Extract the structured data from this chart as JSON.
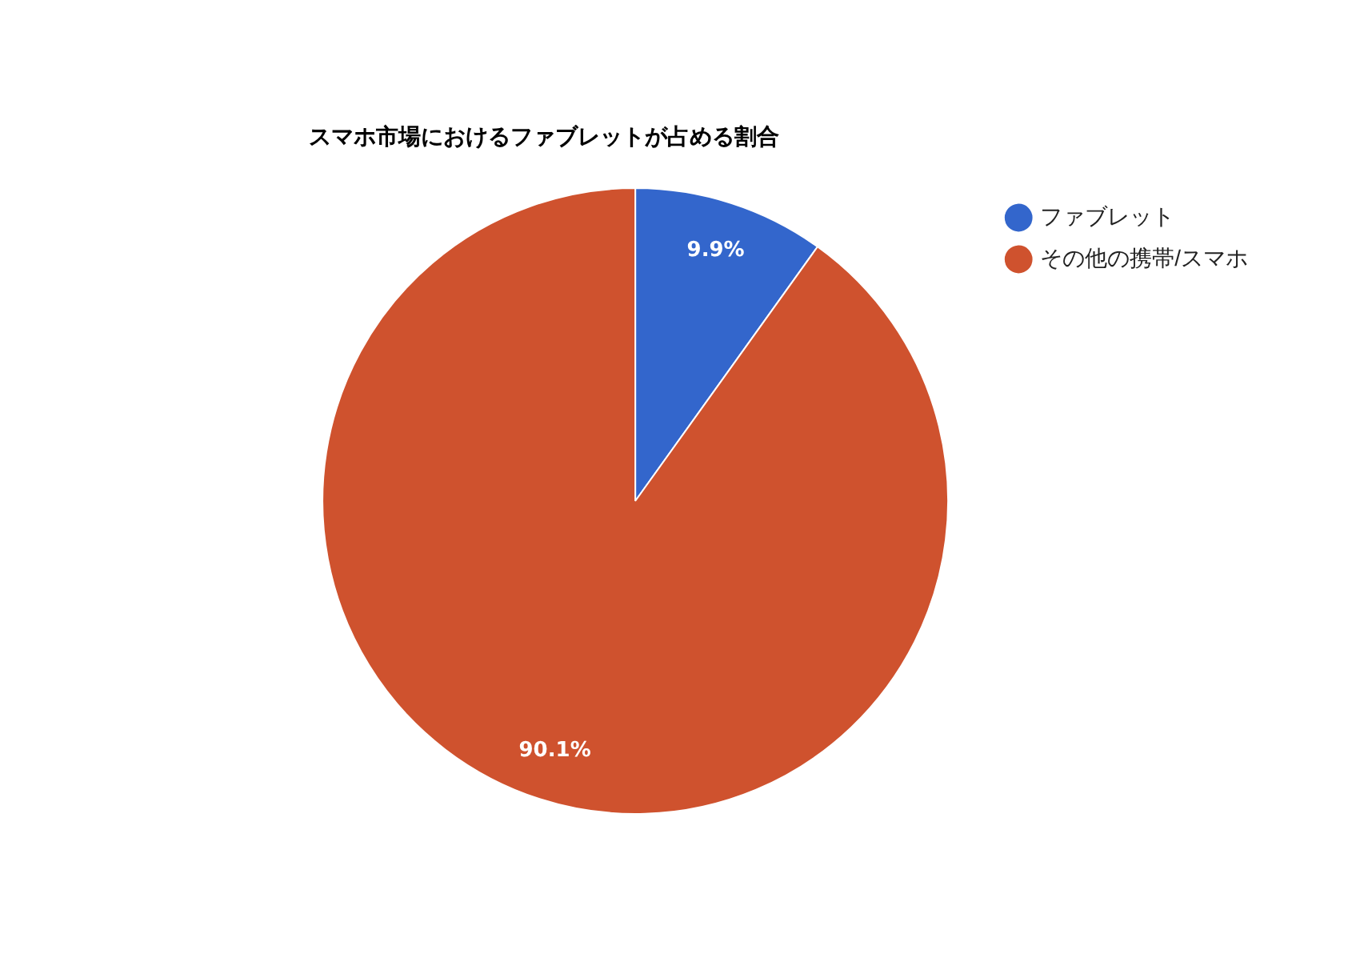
{
  "chart_data": {
    "type": "pie",
    "title": "スマホ市場におけるファブレットが占める割合",
    "categories": [
      "ファブレット",
      "その他の携帯/スマホ"
    ],
    "values": [
      9.9,
      90.1
    ],
    "colors": [
      "#3366cc",
      "#cf522e"
    ],
    "value_labels": [
      "9.9%",
      "90.1%"
    ],
    "legend": "top right"
  }
}
